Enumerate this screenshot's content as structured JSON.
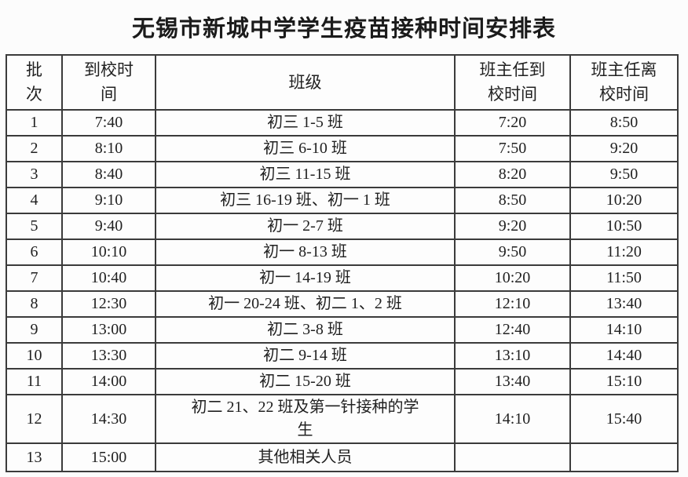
{
  "title": "无锡市新城中学学生疫苗接种时间安排表",
  "table": {
    "headers": [
      "批\n次",
      "到校时\n间",
      "班级",
      "班主任到\n校时间",
      "班主任离\n校时间"
    ],
    "row_keys": [
      "batch",
      "arrival_time",
      "classes",
      "teacher_arrival",
      "teacher_departure"
    ],
    "rows": [
      {
        "batch": "1",
        "arrival_time": "7:40",
        "classes": "初三 1-5 班",
        "teacher_arrival": "7:20",
        "teacher_departure": "8:50"
      },
      {
        "batch": "2",
        "arrival_time": "8:10",
        "classes": "初三 6-10 班",
        "teacher_arrival": "7:50",
        "teacher_departure": "9:20"
      },
      {
        "batch": "3",
        "arrival_time": "8:40",
        "classes": "初三 11-15 班",
        "teacher_arrival": "8:20",
        "teacher_departure": "9:50"
      },
      {
        "batch": "4",
        "arrival_time": "9:10",
        "classes": "初三 16-19 班、初一 1 班",
        "teacher_arrival": "8:50",
        "teacher_departure": "10:20"
      },
      {
        "batch": "5",
        "arrival_time": "9:40",
        "classes": "初一 2-7 班",
        "teacher_arrival": "9:20",
        "teacher_departure": "10:50"
      },
      {
        "batch": "6",
        "arrival_time": "10:10",
        "classes": "初一 8-13 班",
        "teacher_arrival": "9:50",
        "teacher_departure": "11:20"
      },
      {
        "batch": "7",
        "arrival_time": "10:40",
        "classes": "初一 14-19 班",
        "teacher_arrival": "10:20",
        "teacher_departure": "11:50"
      },
      {
        "batch": "8",
        "arrival_time": "12:30",
        "classes": "初一 20-24 班、初二 1、2 班",
        "teacher_arrival": "12:10",
        "teacher_departure": "13:40"
      },
      {
        "batch": "9",
        "arrival_time": "13:00",
        "classes": "初二 3-8 班",
        "teacher_arrival": "12:40",
        "teacher_departure": "14:10"
      },
      {
        "batch": "10",
        "arrival_time": "13:30",
        "classes": "初二 9-14 班",
        "teacher_arrival": "13:10",
        "teacher_departure": "14:40"
      },
      {
        "batch": "11",
        "arrival_time": "14:00",
        "classes": "初二 15-20 班",
        "teacher_arrival": "13:40",
        "teacher_departure": "15:10"
      },
      {
        "batch": "12",
        "arrival_time": "14:30",
        "classes": "初二 21、22 班及第一针接种的学\n生",
        "teacher_arrival": "14:10",
        "teacher_departure": "15:40"
      },
      {
        "batch": "13",
        "arrival_time": "15:00",
        "classes": "其他相关人员",
        "teacher_arrival": "",
        "teacher_departure": ""
      }
    ]
  },
  "colors": {
    "border": "#3b3b3b",
    "text": "#212121",
    "background": "#fcfcfc"
  }
}
